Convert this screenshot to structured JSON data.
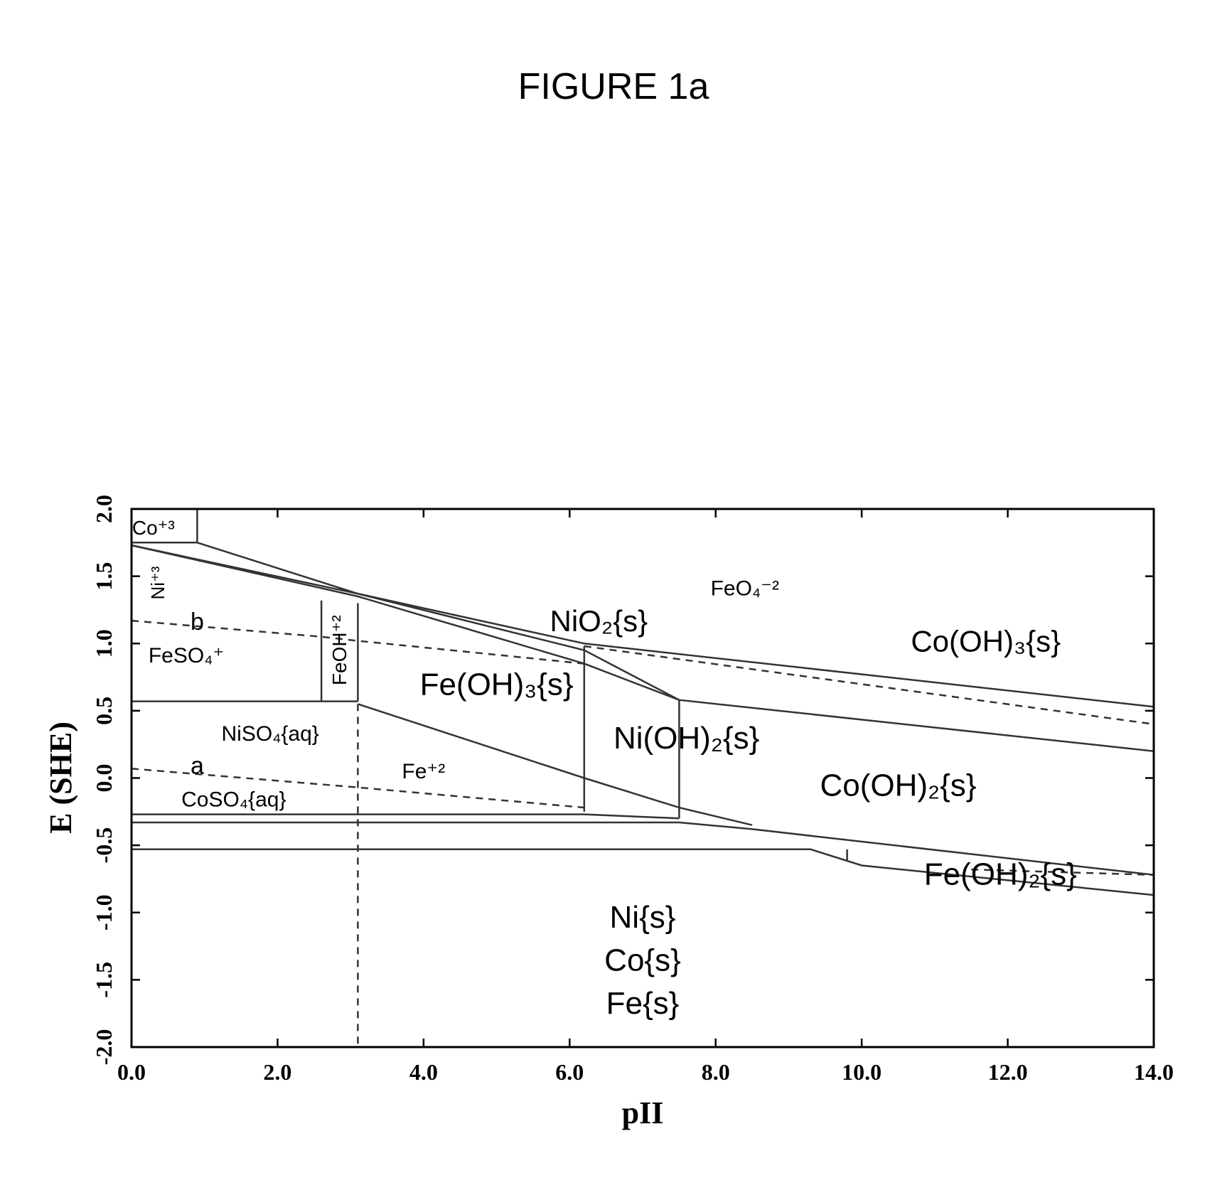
{
  "figure": {
    "title": "FIGURE 1a"
  },
  "chart_data": {
    "type": "line",
    "title": "",
    "xlabel": "pII",
    "ylabel": "E (SHE)",
    "xlim": [
      0,
      14
    ],
    "ylim": [
      -2,
      2
    ],
    "grid": false,
    "x_ticks": [
      {
        "value": 0,
        "label": "0.0"
      },
      {
        "value": 2,
        "label": "2.0"
      },
      {
        "value": 4,
        "label": "4.0"
      },
      {
        "value": 6,
        "label": "6.0"
      },
      {
        "value": 8,
        "label": "8.0"
      },
      {
        "value": 10,
        "label": "10.0"
      },
      {
        "value": 12,
        "label": "12.0"
      },
      {
        "value": 14,
        "label": "14.0"
      }
    ],
    "y_ticks": [
      {
        "value": 2,
        "label": "2.0"
      },
      {
        "value": 1.5,
        "label": "1.5"
      },
      {
        "value": 1,
        "label": "1.0"
      },
      {
        "value": 0.5,
        "label": "0.5"
      },
      {
        "value": 0,
        "label": "0.0"
      },
      {
        "value": -0.5,
        "label": "-0.5"
      },
      {
        "value": -1,
        "label": "-1.0"
      },
      {
        "value": -1.5,
        "label": "-1.5"
      },
      {
        "value": -2,
        "label": "-2.0"
      }
    ],
    "boundaries": [
      {
        "style": "solid",
        "points": [
          [
            0.9,
            2.0
          ],
          [
            0.9,
            1.75
          ]
        ]
      },
      {
        "style": "solid",
        "points": [
          [
            0,
            1.75
          ],
          [
            0.9,
            1.75
          ]
        ]
      },
      {
        "style": "solid",
        "points": [
          [
            0.9,
            1.75
          ],
          [
            3.1,
            1.37
          ],
          [
            6.2,
            1.0
          ],
          [
            14,
            0.53
          ]
        ]
      },
      {
        "style": "solid",
        "points": [
          [
            0,
            1.73
          ],
          [
            3.1,
            1.37
          ],
          [
            6.2,
            0.95
          ],
          [
            7.5,
            0.58
          ],
          [
            14,
            0.2
          ]
        ]
      },
      {
        "style": "solid",
        "points": [
          [
            0,
            1.73
          ],
          [
            3.1,
            1.35
          ],
          [
            6.2,
            0.85
          ],
          [
            7.5,
            0.58
          ]
        ]
      },
      {
        "style": "dashed",
        "points": [
          [
            6.2,
            0.98
          ],
          [
            14,
            0.4
          ]
        ]
      },
      {
        "style": "solid",
        "points": [
          [
            0,
            0.57
          ],
          [
            3.1,
            0.57
          ]
        ]
      },
      {
        "style": "solid",
        "points": [
          [
            2.6,
            1.32
          ],
          [
            2.6,
            0.57
          ]
        ]
      },
      {
        "style": "solid",
        "points": [
          [
            3.1,
            1.3
          ],
          [
            3.1,
            0.57
          ]
        ]
      },
      {
        "style": "solid",
        "points": [
          [
            6.2,
            0.98
          ],
          [
            6.2,
            -0.25
          ]
        ]
      },
      {
        "style": "solid",
        "points": [
          [
            7.5,
            0.58
          ],
          [
            7.5,
            -0.3
          ]
        ]
      },
      {
        "style": "solid",
        "points": [
          [
            3.1,
            0.55
          ],
          [
            6.2,
            -0.0
          ],
          [
            7.5,
            -0.22
          ],
          [
            8.5,
            -0.35
          ]
        ]
      },
      {
        "style": "solid",
        "points": [
          [
            0,
            -0.27
          ],
          [
            6.2,
            -0.27
          ],
          [
            7.5,
            -0.3
          ]
        ]
      },
      {
        "style": "solid",
        "points": [
          [
            0,
            -0.33
          ],
          [
            7.5,
            -0.33
          ],
          [
            8.5,
            -0.38
          ],
          [
            14,
            -0.72
          ]
        ]
      },
      {
        "style": "solid",
        "points": [
          [
            0,
            -0.53
          ],
          [
            9.3,
            -0.53
          ],
          [
            10.0,
            -0.65
          ],
          [
            14,
            -0.87
          ]
        ]
      },
      {
        "style": "solid",
        "points": [
          [
            9.8,
            -0.53
          ],
          [
            9.8,
            -0.62
          ]
        ]
      },
      {
        "style": "dashed",
        "points": [
          [
            0,
            1.17
          ],
          [
            2.6,
            1.05
          ],
          [
            3.1,
            1.02
          ],
          [
            6.2,
            0.85
          ]
        ]
      },
      {
        "style": "dashed",
        "points": [
          [
            0,
            0.07
          ],
          [
            3.1,
            -0.07
          ],
          [
            6.2,
            -0.22
          ]
        ]
      },
      {
        "style": "dashed",
        "points": [
          [
            3.1,
            0.55
          ],
          [
            3.1,
            -2.0
          ]
        ]
      },
      {
        "style": "dashed",
        "points": [
          [
            11.5,
            -0.68
          ],
          [
            14,
            -0.72
          ]
        ]
      }
    ],
    "regions": [
      {
        "label": "Co⁺³",
        "x": 0.3,
        "y": 1.85,
        "size": 28
      },
      {
        "label": "Ni⁺³",
        "x": 0.38,
        "y": 1.45,
        "size": 26,
        "rotate": -90
      },
      {
        "label": "b",
        "x": 0.9,
        "y": 1.15,
        "size": 34
      },
      {
        "label": "FeSO₄⁺",
        "x": 0.75,
        "y": 0.9,
        "size": 30
      },
      {
        "label": "FeOH⁺²",
        "x": 2.87,
        "y": 0.95,
        "size": 28,
        "rotate": -90
      },
      {
        "label": "NiO₂{s}",
        "x": 6.4,
        "y": 1.15,
        "size": 42
      },
      {
        "label": "FeO₄⁻²",
        "x": 8.4,
        "y": 1.4,
        "size": 30
      },
      {
        "label": "Co(OH)₃{s}",
        "x": 11.7,
        "y": 1.0,
        "size": 42
      },
      {
        "label": "Fe(OH)₃{s}",
        "x": 5.0,
        "y": 0.68,
        "size": 44
      },
      {
        "label": "NiSO₄{aq}",
        "x": 1.9,
        "y": 0.32,
        "size": 30
      },
      {
        "label": "a",
        "x": 0.9,
        "y": 0.08,
        "size": 34
      },
      {
        "label": "Fe⁺²",
        "x": 4.0,
        "y": 0.04,
        "size": 30
      },
      {
        "label": "Ni(OH)₂{s}",
        "x": 7.6,
        "y": 0.28,
        "size": 44
      },
      {
        "label": "CoSO₄{aq}",
        "x": 1.4,
        "y": -0.17,
        "size": 30
      },
      {
        "label": "Co(OH)₂{s}",
        "x": 10.5,
        "y": -0.07,
        "size": 44
      },
      {
        "label": "Fe(OH)₂{s}",
        "x": 11.9,
        "y": -0.73,
        "size": 44
      },
      {
        "label": "Ni{s}",
        "x": 7.0,
        "y": -1.05,
        "size": 44
      },
      {
        "label": "Co{s}",
        "x": 7.0,
        "y": -1.37,
        "size": 44
      },
      {
        "label": "Fe{s}",
        "x": 7.0,
        "y": -1.69,
        "size": 44
      }
    ]
  }
}
